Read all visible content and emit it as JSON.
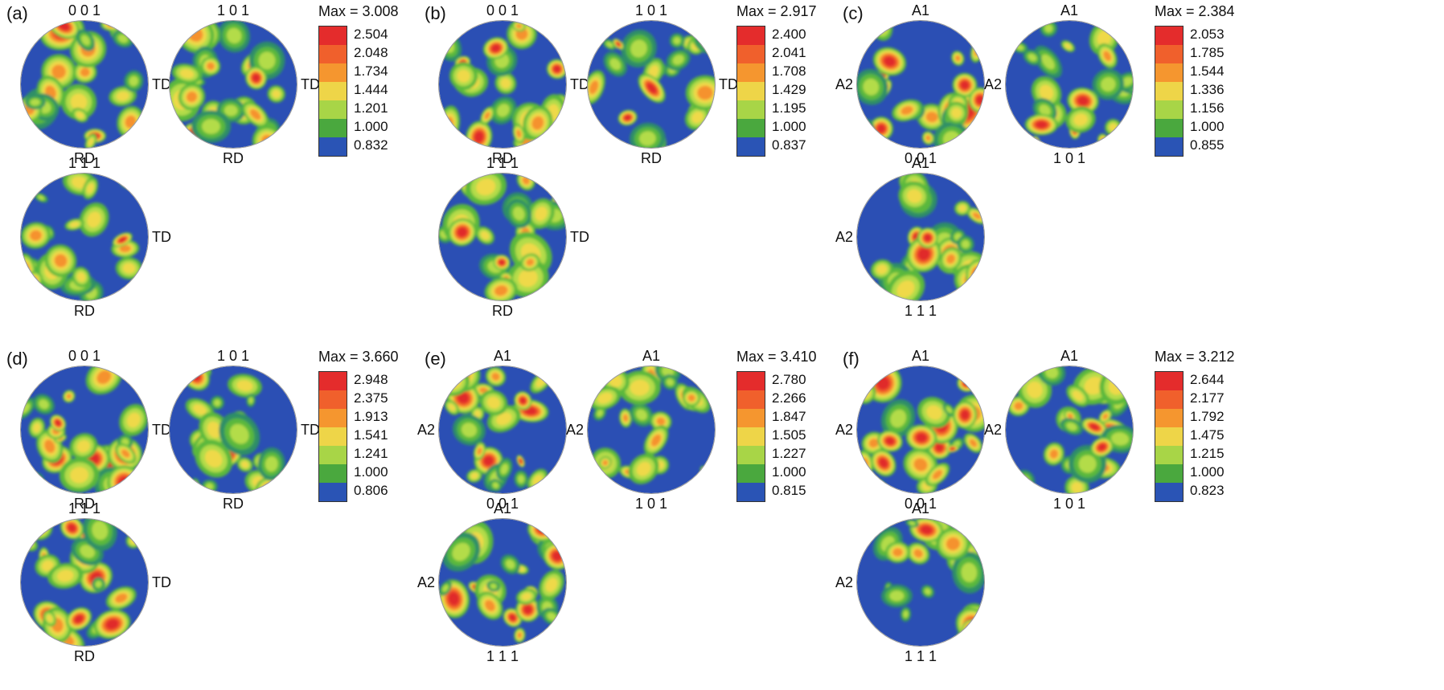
{
  "colors": [
    "#e02a2a",
    "#f0552a",
    "#f5922e",
    "#efd94a",
    "#b3dc48",
    "#5ab83d",
    "#2d8f66",
    "#2b4fb4"
  ],
  "legend_palette": [
    "#e42c2c",
    "#f0602c",
    "#f5962f",
    "#eed548",
    "#a8d547",
    "#4aa83e",
    "#2a54b5"
  ],
  "panels": [
    {
      "tag": "(a)",
      "legend_max": "Max = 3.008",
      "legend_values": [
        "2.504",
        "2.048",
        "1.734",
        "1.444",
        "1.201",
        "1.000",
        "0.832"
      ],
      "poles": [
        {
          "name": "0 0 1",
          "labels": {
            "top": "0 0 1",
            "right": "TD",
            "bottom": "RD",
            "left": ""
          }
        },
        {
          "name": "1 0 1",
          "labels": {
            "top": "1 0 1",
            "right": "TD",
            "bottom": "RD",
            "left": ""
          }
        },
        {
          "name": "1 1 1",
          "labels": {
            "top": "1 1 1",
            "right": "TD",
            "bottom": "RD",
            "left": ""
          }
        }
      ]
    },
    {
      "tag": "(b)",
      "legend_max": "Max = 2.917",
      "legend_values": [
        "2.400",
        "2.041",
        "1.708",
        "1.429",
        "1.195",
        "1.000",
        "0.837"
      ],
      "poles": [
        {
          "name": "0 0 1",
          "labels": {
            "top": "0 0 1",
            "right": "TD",
            "bottom": "RD",
            "left": ""
          }
        },
        {
          "name": "1 0 1",
          "labels": {
            "top": "1 0 1",
            "right": "TD",
            "bottom": "RD",
            "left": ""
          }
        },
        {
          "name": "1 1 1",
          "labels": {
            "top": "1 1 1",
            "right": "TD",
            "bottom": "RD",
            "left": ""
          }
        }
      ]
    },
    {
      "tag": "(c)",
      "legend_max": "Max = 2.384",
      "legend_values": [
        "2.053",
        "1.785",
        "1.544",
        "1.336",
        "1.156",
        "1.000",
        "0.855"
      ],
      "poles": [
        {
          "name": "0 0 1",
          "labels": {
            "top": "A1",
            "right": "",
            "bottom": "0 0 1",
            "left": "A2"
          }
        },
        {
          "name": "1 0 1",
          "labels": {
            "top": "A1",
            "right": "",
            "bottom": "1 0 1",
            "left": "A2"
          }
        },
        {
          "name": "1 1 1",
          "labels": {
            "top": "A1",
            "right": "",
            "bottom": "1 1 1",
            "left": "A2"
          }
        }
      ]
    },
    {
      "tag": "(d)",
      "legend_max": "Max = 3.660",
      "legend_values": [
        "2.948",
        "2.375",
        "1.913",
        "1.541",
        "1.241",
        "1.000",
        "0.806"
      ],
      "poles": [
        {
          "name": "0 0 1",
          "labels": {
            "top": "0 0 1",
            "right": "TD",
            "bottom": "RD",
            "left": ""
          }
        },
        {
          "name": "1 0 1",
          "labels": {
            "top": "1 0 1",
            "right": "TD",
            "bottom": "RD",
            "left": ""
          }
        },
        {
          "name": "1 1 1",
          "labels": {
            "top": "1 1 1",
            "right": "TD",
            "bottom": "RD",
            "left": ""
          }
        }
      ]
    },
    {
      "tag": "(e)",
      "legend_max": "Max = 3.410",
      "legend_values": [
        "2.780",
        "2.266",
        "1.847",
        "1.505",
        "1.227",
        "1.000",
        "0.815"
      ],
      "poles": [
        {
          "name": "0 0 1",
          "labels": {
            "top": "A1",
            "right": "",
            "bottom": "0 0 1",
            "left": "A2"
          }
        },
        {
          "name": "1 0 1",
          "labels": {
            "top": "A1",
            "right": "",
            "bottom": "1 0 1",
            "left": "A2"
          }
        },
        {
          "name": "1 1 1",
          "labels": {
            "top": "A1",
            "right": "",
            "bottom": "1 1 1",
            "left": "A2"
          }
        }
      ]
    },
    {
      "tag": "(f)",
      "legend_max": "Max = 3.212",
      "legend_values": [
        "2.644",
        "2.177",
        "1.792",
        "1.475",
        "1.215",
        "1.000",
        "0.823"
      ],
      "poles": [
        {
          "name": "0 0 1",
          "labels": {
            "top": "A1",
            "right": "",
            "bottom": "0 0 1",
            "left": "A2"
          }
        },
        {
          "name": "1 0 1",
          "labels": {
            "top": "A1",
            "right": "",
            "bottom": "1 0 1",
            "left": "A2"
          }
        },
        {
          "name": "1 1 1",
          "labels": {
            "top": "A1",
            "right": "",
            "bottom": "1 1 1",
            "left": "A2"
          }
        }
      ]
    }
  ]
}
